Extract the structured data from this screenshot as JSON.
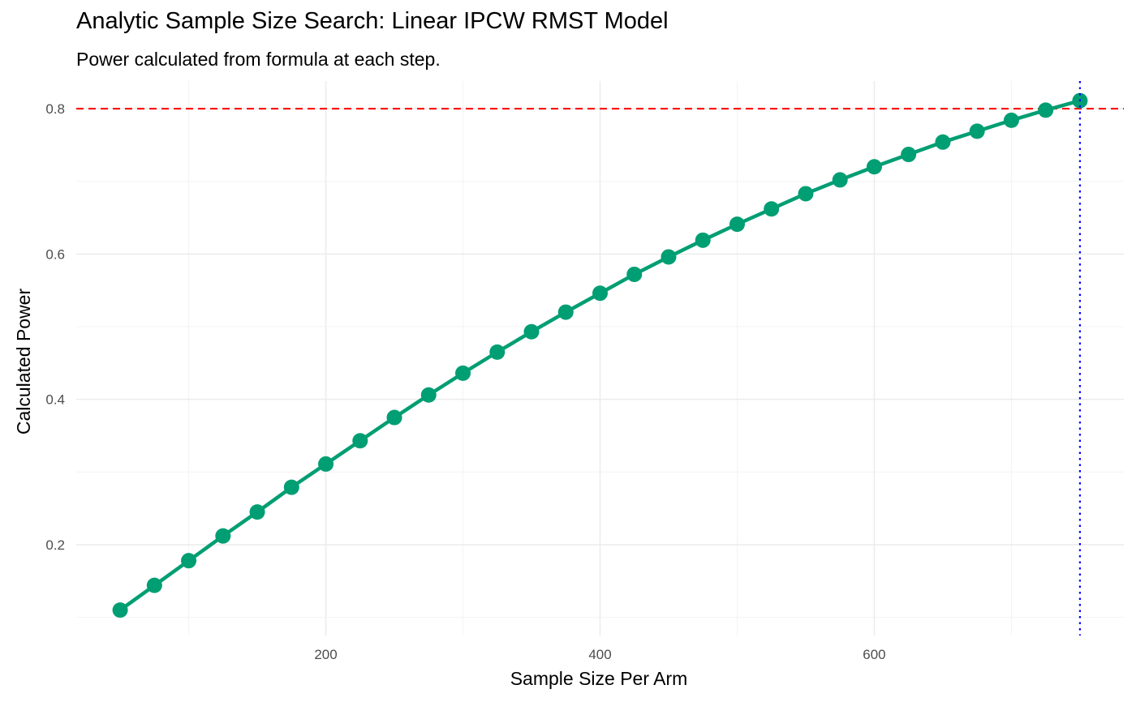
{
  "chart_data": {
    "type": "line",
    "title": "Analytic Sample Size Search: Linear IPCW RMST Model",
    "subtitle": "Power calculated from formula at each step.",
    "xlabel": "Sample Size Per Arm",
    "ylabel": "Calculated Power",
    "xlim": [
      18,
      782
    ],
    "ylim": [
      0.075,
      0.838
    ],
    "x_ticks": [
      200,
      400,
      600
    ],
    "y_ticks": [
      0.2,
      0.4,
      0.6,
      0.8
    ],
    "grid": true,
    "legend": "none",
    "series": [
      {
        "x": [
          50,
          75,
          100,
          125,
          150,
          175,
          200,
          225,
          250,
          275,
          300,
          325,
          350,
          375,
          400,
          425,
          450,
          475,
          500,
          525,
          550,
          575,
          600,
          625,
          650,
          675,
          700,
          725,
          750
        ],
        "values": [
          0.11,
          0.144,
          0.178,
          0.212,
          0.245,
          0.279,
          0.311,
          0.343,
          0.375,
          0.406,
          0.436,
          0.465,
          0.493,
          0.52,
          0.546,
          0.572,
          0.596,
          0.619,
          0.641,
          0.662,
          0.683,
          0.702,
          0.72,
          0.737,
          0.754,
          0.769,
          0.784,
          0.798,
          0.811
        ],
        "color": "#009E73"
      }
    ],
    "reference_lines": [
      {
        "orientation": "horizontal",
        "value": 0.8,
        "style": "dashed",
        "color": "#FF0000"
      },
      {
        "orientation": "vertical",
        "value": 750,
        "style": "dotted",
        "color": "#0000FF"
      }
    ]
  }
}
